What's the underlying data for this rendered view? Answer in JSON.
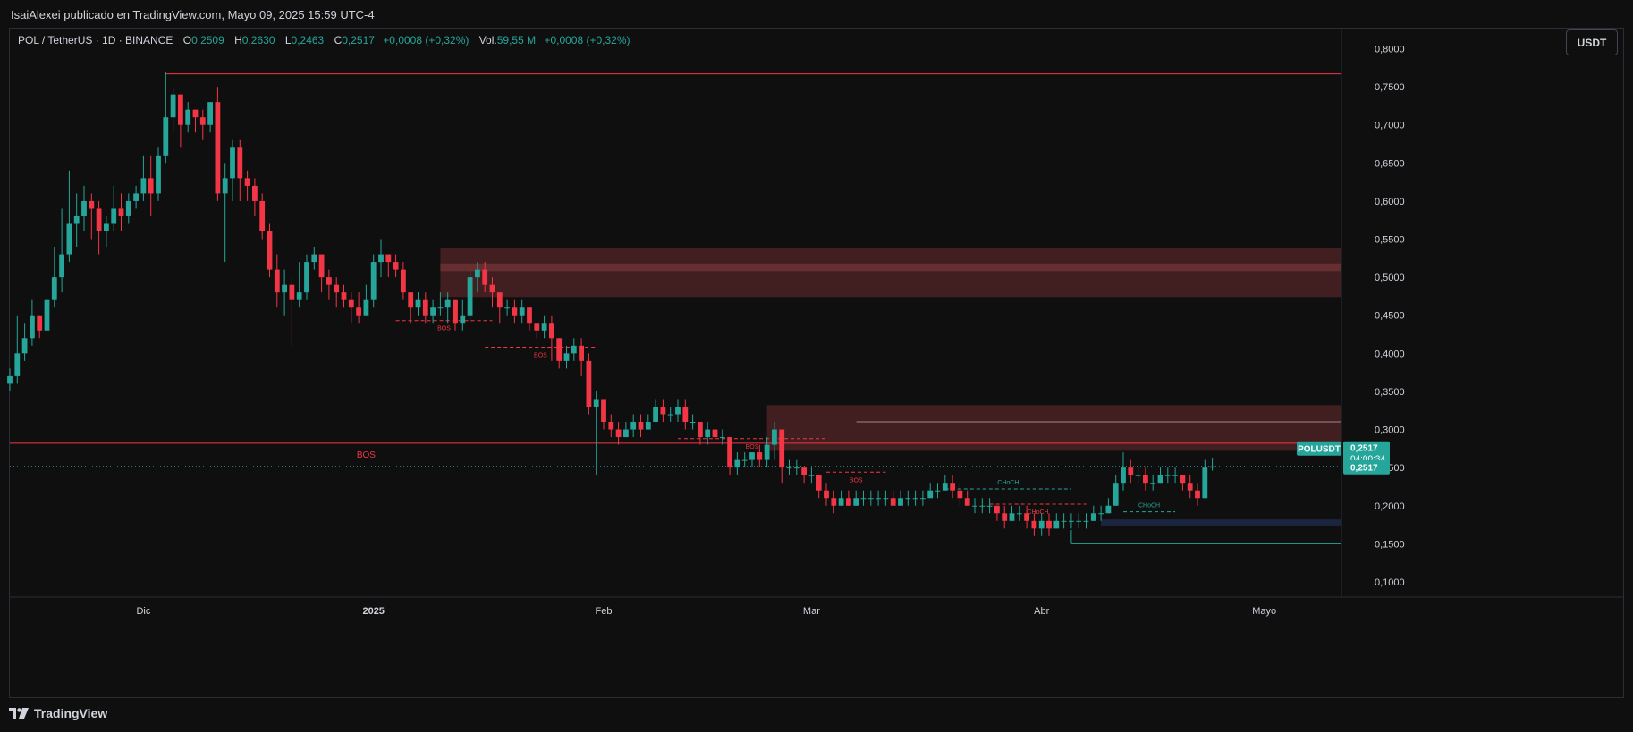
{
  "header": {
    "publish_line": "IsaiAlexei publicado en TradingView.com, Mayo 09, 2025 15:59 UTC-4"
  },
  "legend": {
    "symbol": "POL / TetherUS · 1D · BINANCE",
    "o_label": "O",
    "o_value": "0,2509",
    "h_label": "H",
    "h_value": "0,2630",
    "l_label": "L",
    "l_value": "0,2463",
    "c_label": "C",
    "c_value": "0,2517",
    "change": "+0,0008 (+0,32%)",
    "vol_label": "Vol.",
    "vol_value": "59,55 M",
    "vol_change": "+0,0008 (+0,32%)"
  },
  "currency_button": "USDT",
  "footer": {
    "brand": "TradingView"
  },
  "colors": {
    "up": "#26a69a",
    "down": "#f23645",
    "zone": "#4a2225",
    "blue_zone": "#1c2540",
    "background": "#0f0f0f"
  },
  "chart_data": {
    "type": "candlestick",
    "ylim": [
      0.08,
      0.81
    ],
    "y_ticks": [
      0.1,
      0.15,
      0.2,
      0.25,
      0.3,
      0.35,
      0.4,
      0.45,
      0.5,
      0.55,
      0.6,
      0.65,
      0.7,
      0.75,
      0.8
    ],
    "y_tick_labels": [
      "0,1000",
      "0,1500",
      "0,2000",
      "0,2500",
      "0,3000",
      "0,3500",
      "0,4000",
      "0,4500",
      "0,5000",
      "0,5500",
      "0,6000",
      "0,6500",
      "0,7000",
      "0,7500",
      "0,8000"
    ],
    "x_start_date": "2024-11-13",
    "x_tick_dates": [
      "2024-12-01",
      "2025-01-01",
      "2025-02-01",
      "2025-03-01",
      "2025-04-01",
      "2025-05-01"
    ],
    "x_tick_labels": [
      "Dic",
      "2025",
      "Feb",
      "Mar",
      "Abr",
      "Mayo"
    ],
    "closes": [
      0.37,
      0.4,
      0.42,
      0.45,
      0.43,
      0.47,
      0.5,
      0.53,
      0.57,
      0.58,
      0.6,
      0.59,
      0.56,
      0.57,
      0.59,
      0.58,
      0.6,
      0.61,
      0.63,
      0.61,
      0.66,
      0.71,
      0.74,
      0.7,
      0.72,
      0.71,
      0.7,
      0.73,
      0.61,
      0.63,
      0.67,
      0.63,
      0.62,
      0.6,
      0.56,
      0.51,
      0.48,
      0.49,
      0.47,
      0.48,
      0.52,
      0.53,
      0.5,
      0.49,
      0.48,
      0.47,
      0.46,
      0.45,
      0.47,
      0.52,
      0.53,
      0.52,
      0.51,
      0.48,
      0.46,
      0.47,
      0.45,
      0.46,
      0.46,
      0.47,
      0.44,
      0.45,
      0.5,
      0.51,
      0.49,
      0.48,
      0.46,
      0.46,
      0.45,
      0.46,
      0.44,
      0.43,
      0.44,
      0.42,
      0.39,
      0.4,
      0.41,
      0.39,
      0.33,
      0.34,
      0.31,
      0.3,
      0.29,
      0.3,
      0.31,
      0.3,
      0.31,
      0.33,
      0.32,
      0.32,
      0.33,
      0.31,
      0.31,
      0.29,
      0.3,
      0.29,
      0.29,
      0.25,
      0.26,
      0.26,
      0.27,
      0.26,
      0.28,
      0.3,
      0.25,
      0.25,
      0.25,
      0.24,
      0.24,
      0.22,
      0.21,
      0.2,
      0.21,
      0.2,
      0.21,
      0.21,
      0.21,
      0.21,
      0.21,
      0.2,
      0.21,
      0.21,
      0.21,
      0.21,
      0.22,
      0.22,
      0.23,
      0.22,
      0.21,
      0.2,
      0.2,
      0.2,
      0.2,
      0.19,
      0.18,
      0.19,
      0.19,
      0.18,
      0.17,
      0.18,
      0.17,
      0.18,
      0.18,
      0.18,
      0.18,
      0.18,
      0.19,
      0.19,
      0.2,
      0.23,
      0.25,
      0.24,
      0.24,
      0.23,
      0.23,
      0.24,
      0.24,
      0.24,
      0.23,
      0.22,
      0.21,
      0.25,
      0.2517
    ],
    "highs": [
      0.38,
      0.45,
      0.44,
      0.47,
      0.45,
      0.49,
      0.54,
      0.59,
      0.64,
      0.61,
      0.62,
      0.61,
      0.6,
      0.58,
      0.62,
      0.61,
      0.61,
      0.62,
      0.66,
      0.66,
      0.67,
      0.77,
      0.75,
      0.74,
      0.73,
      0.72,
      0.72,
      0.73,
      0.75,
      0.65,
      0.68,
      0.68,
      0.64,
      0.63,
      0.61,
      0.57,
      0.53,
      0.51,
      0.5,
      0.52,
      0.53,
      0.54,
      0.53,
      0.51,
      0.5,
      0.49,
      0.48,
      0.48,
      0.49,
      0.53,
      0.55,
      0.53,
      0.53,
      0.52,
      0.48,
      0.48,
      0.48,
      0.47,
      0.48,
      0.48,
      0.47,
      0.47,
      0.51,
      0.52,
      0.52,
      0.5,
      0.48,
      0.47,
      0.47,
      0.47,
      0.46,
      0.44,
      0.45,
      0.45,
      0.42,
      0.41,
      0.42,
      0.42,
      0.4,
      0.35,
      0.34,
      0.32,
      0.31,
      0.31,
      0.32,
      0.32,
      0.32,
      0.34,
      0.34,
      0.33,
      0.34,
      0.34,
      0.32,
      0.31,
      0.31,
      0.3,
      0.3,
      0.29,
      0.27,
      0.27,
      0.27,
      0.28,
      0.29,
      0.31,
      0.3,
      0.26,
      0.26,
      0.25,
      0.25,
      0.24,
      0.23,
      0.22,
      0.22,
      0.22,
      0.22,
      0.22,
      0.22,
      0.22,
      0.22,
      0.22,
      0.22,
      0.22,
      0.22,
      0.22,
      0.23,
      0.23,
      0.24,
      0.24,
      0.23,
      0.22,
      0.21,
      0.21,
      0.21,
      0.2,
      0.2,
      0.2,
      0.2,
      0.2,
      0.19,
      0.19,
      0.19,
      0.19,
      0.19,
      0.19,
      0.19,
      0.19,
      0.2,
      0.2,
      0.21,
      0.24,
      0.27,
      0.26,
      0.25,
      0.25,
      0.24,
      0.25,
      0.25,
      0.25,
      0.24,
      0.24,
      0.23,
      0.26,
      0.263
    ],
    "lows": [
      0.35,
      0.36,
      0.39,
      0.41,
      0.42,
      0.42,
      0.46,
      0.48,
      0.52,
      0.54,
      0.56,
      0.55,
      0.53,
      0.54,
      0.56,
      0.56,
      0.57,
      0.59,
      0.6,
      0.58,
      0.6,
      0.65,
      0.69,
      0.67,
      0.69,
      0.69,
      0.68,
      0.69,
      0.6,
      0.52,
      0.6,
      0.6,
      0.6,
      0.58,
      0.55,
      0.5,
      0.46,
      0.45,
      0.41,
      0.46,
      0.47,
      0.51,
      0.48,
      0.47,
      0.46,
      0.46,
      0.44,
      0.44,
      0.45,
      0.46,
      0.5,
      0.5,
      0.5,
      0.47,
      0.44,
      0.45,
      0.44,
      0.44,
      0.45,
      0.44,
      0.43,
      0.43,
      0.44,
      0.48,
      0.48,
      0.46,
      0.44,
      0.45,
      0.44,
      0.44,
      0.43,
      0.42,
      0.42,
      0.39,
      0.38,
      0.38,
      0.39,
      0.37,
      0.32,
      0.24,
      0.3,
      0.29,
      0.28,
      0.29,
      0.29,
      0.29,
      0.3,
      0.31,
      0.31,
      0.31,
      0.31,
      0.3,
      0.3,
      0.28,
      0.28,
      0.28,
      0.28,
      0.24,
      0.24,
      0.25,
      0.25,
      0.25,
      0.25,
      0.26,
      0.23,
      0.24,
      0.24,
      0.23,
      0.23,
      0.21,
      0.2,
      0.19,
      0.2,
      0.2,
      0.2,
      0.2,
      0.2,
      0.2,
      0.2,
      0.2,
      0.2,
      0.2,
      0.2,
      0.2,
      0.21,
      0.21,
      0.22,
      0.21,
      0.2,
      0.2,
      0.19,
      0.19,
      0.19,
      0.18,
      0.17,
      0.18,
      0.18,
      0.17,
      0.16,
      0.16,
      0.16,
      0.17,
      0.17,
      0.17,
      0.17,
      0.17,
      0.18,
      0.18,
      0.19,
      0.2,
      0.22,
      0.23,
      0.23,
      0.22,
      0.22,
      0.23,
      0.23,
      0.23,
      0.22,
      0.21,
      0.2,
      0.22,
      0.246
    ],
    "zones": [
      {
        "kind": "supply",
        "top": 0.538,
        "bottom": 0.474,
        "start_index": 58
      },
      {
        "kind": "supply",
        "top": 0.332,
        "bottom": 0.272,
        "start_index": 102
      },
      {
        "kind": "demand",
        "top": 0.182,
        "bottom": 0.174,
        "start_index": 147
      }
    ],
    "hlines": [
      {
        "price": 0.767,
        "start_index": 21,
        "color": "#f23645"
      },
      {
        "price": 0.282,
        "start_index": 0,
        "color": "#f23645"
      },
      {
        "price": 0.15,
        "start_index": 143,
        "color": "#26a69a"
      }
    ],
    "structure_breaks": [
      {
        "label": "BOS",
        "price": 0.443,
        "from_index": 52,
        "to_index": 65,
        "color": "#f23645"
      },
      {
        "label": "BOS",
        "price": 0.408,
        "from_index": 64,
        "to_index": 79,
        "color": "#f23645"
      },
      {
        "label": "BOS",
        "price": 0.288,
        "from_index": 90,
        "to_index": 110,
        "color": "#f23645"
      },
      {
        "label": "BOS",
        "price": 0.244,
        "from_index": 110,
        "to_index": 118,
        "color": "#f23645"
      },
      {
        "label": "CHoCH",
        "price": 0.222,
        "from_index": 126,
        "to_index": 143,
        "color": "#26a69a"
      },
      {
        "label": "CHoCH",
        "price": 0.202,
        "from_index": 132,
        "to_index": 145,
        "color": "#f23645"
      },
      {
        "label": "CHoCH",
        "price": 0.192,
        "from_index": 150,
        "to_index": 157,
        "color": "#26a69a"
      }
    ],
    "big_bos": {
      "label": "BOS",
      "price": 0.282,
      "index": 48
    },
    "price_tags": {
      "symbol_tag": "POLUSDT",
      "last_price": "0,2517",
      "countdown": "04:00:34",
      "close_price": "0,2517"
    }
  }
}
